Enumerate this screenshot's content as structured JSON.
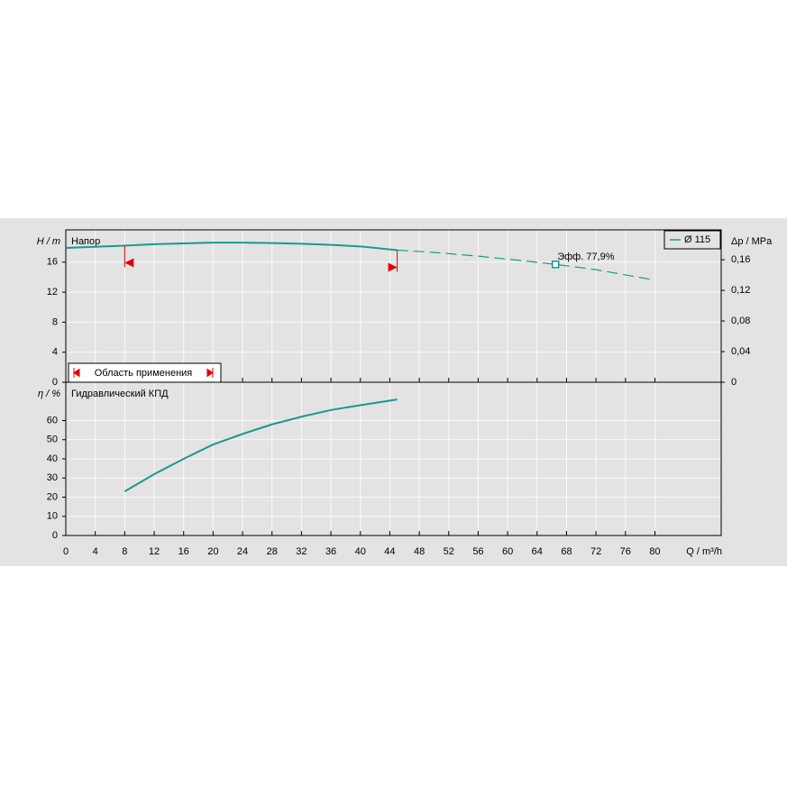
{
  "chart_data": [
    {
      "type": "line",
      "title": "Напор",
      "y_label": "H / m",
      "y2_label": "Δp / MPa",
      "xlim": [
        0,
        89
      ],
      "ylim": [
        0,
        20.3
      ],
      "yticks": [
        0,
        4,
        8,
        12,
        16
      ],
      "y2lim": [
        0,
        0.199
      ],
      "y2ticks": [
        0,
        {
          "value": 0.04,
          "label": "0,04"
        },
        {
          "value": 0.08,
          "label": "0,08"
        },
        {
          "value": 0.12,
          "label": "0,12"
        },
        {
          "value": 0.16,
          "label": "0,16"
        }
      ],
      "grid": true,
      "legend": "upper right",
      "series": [
        {
          "name": "Ø 115",
          "color": "#1a9a8a",
          "x": [
            0,
            4,
            8,
            12,
            16,
            20,
            24,
            28,
            32,
            36,
            40,
            45,
            50,
            56,
            62,
            66.5,
            72,
            80
          ],
          "values": [
            17.9,
            18.05,
            18.2,
            18.4,
            18.5,
            18.6,
            18.6,
            18.55,
            18.45,
            18.3,
            18.1,
            17.6,
            17.3,
            16.8,
            16.2,
            15.7,
            15.0,
            13.6
          ]
        }
      ],
      "application_range": {
        "label": "Область применения",
        "x": [
          8,
          45
        ]
      },
      "annotations": [
        {
          "text": "Эфф.  77,9%",
          "x": 66.5,
          "y": 15.7
        }
      ]
    },
    {
      "type": "line",
      "title": "Гидравлический КПД",
      "y_label": "η / %",
      "x_label": "Q / m³/h",
      "xlim": [
        0,
        89
      ],
      "xticks": [
        0,
        4,
        8,
        12,
        16,
        20,
        24,
        28,
        32,
        36,
        40,
        44,
        48,
        52,
        56,
        60,
        64,
        68,
        72,
        76,
        80
      ],
      "ylim": [
        0,
        80
      ],
      "yticks": [
        0,
        10,
        20,
        30,
        40,
        50,
        60
      ],
      "grid": true,
      "series": [
        {
          "color": "#1a9a8a",
          "x": [
            8,
            12,
            16,
            20,
            24,
            28,
            32,
            36,
            40,
            45
          ],
          "values": [
            23,
            32,
            40,
            47.5,
            53,
            58,
            62,
            65.5,
            68,
            71
          ]
        }
      ]
    }
  ]
}
